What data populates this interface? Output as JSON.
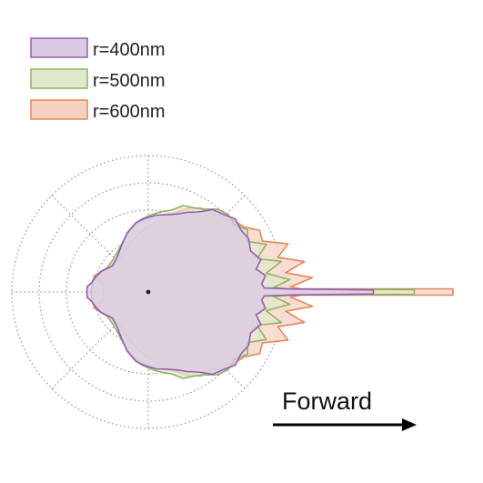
{
  "chart_data": {
    "type": "polar-area",
    "title": "",
    "grid": true,
    "radial_rings": 5,
    "angular_spokes_deg": [
      0,
      45,
      90,
      135,
      180,
      225,
      270,
      315
    ],
    "legend_position": "top-left",
    "angle_convention": "0 deg = forward (right), counter-clockwise, pattern symmetric about forward axis",
    "series": [
      {
        "name": "r=400nm",
        "color": "#9b59b6",
        "fill": "#dac9e3",
        "points": [
          [
            0,
            1.98
          ],
          [
            0.5,
            1.98
          ],
          [
            1.2,
            1.25
          ],
          [
            2,
            1.02
          ],
          [
            4,
            1.0
          ],
          [
            8,
            1.04
          ],
          [
            12,
            0.97
          ],
          [
            16,
            1.03
          ],
          [
            22,
            0.97
          ],
          [
            28,
            1.0
          ],
          [
            34,
            0.98
          ],
          [
            40,
            1.0
          ],
          [
            46,
            0.95
          ],
          [
            52,
            0.92
          ],
          [
            58,
            0.83
          ],
          [
            64,
            0.78
          ],
          [
            70,
            0.73
          ],
          [
            76,
            0.7
          ],
          [
            84,
            0.68
          ],
          [
            92,
            0.65
          ],
          [
            100,
            0.62
          ],
          [
            110,
            0.55
          ],
          [
            120,
            0.47
          ],
          [
            132,
            0.41
          ],
          [
            144,
            0.39
          ],
          [
            156,
            0.45
          ],
          [
            164,
            0.48
          ],
          [
            170,
            0.5
          ],
          [
            175,
            0.54
          ],
          [
            180,
            0.54
          ]
        ]
      },
      {
        "name": "r=500nm",
        "color": "#8db561",
        "fill": "#dfe9cc",
        "points": [
          [
            0,
            2.34
          ],
          [
            0.5,
            2.34
          ],
          [
            1.2,
            1.25
          ],
          [
            2,
            1.1
          ],
          [
            5,
            1.25
          ],
          [
            9,
            1.05
          ],
          [
            13,
            1.2
          ],
          [
            17,
            1.0
          ],
          [
            22,
            1.12
          ],
          [
            27,
            0.98
          ],
          [
            32,
            1.03
          ],
          [
            38,
            0.96
          ],
          [
            44,
            0.98
          ],
          [
            50,
            0.95
          ],
          [
            56,
            0.88
          ],
          [
            62,
            0.84
          ],
          [
            68,
            0.82
          ],
          [
            74,
            0.75
          ],
          [
            80,
            0.72
          ],
          [
            88,
            0.68
          ],
          [
            96,
            0.64
          ],
          [
            106,
            0.57
          ],
          [
            116,
            0.5
          ],
          [
            126,
            0.45
          ],
          [
            138,
            0.42
          ],
          [
            150,
            0.42
          ],
          [
            160,
            0.47
          ],
          [
            168,
            0.5
          ],
          [
            174,
            0.5
          ],
          [
            180,
            0.5
          ]
        ]
      },
      {
        "name": "r=600nm",
        "color": "#e8845e",
        "fill": "#f5d1c1",
        "points": [
          [
            0,
            2.68
          ],
          [
            0.6,
            2.68
          ],
          [
            1.2,
            1.35
          ],
          [
            2,
            1.25
          ],
          [
            5,
            1.45
          ],
          [
            8,
            1.22
          ],
          [
            11,
            1.4
          ],
          [
            15,
            1.18
          ],
          [
            19,
            1.3
          ],
          [
            24,
            1.1
          ],
          [
            29,
            1.12
          ],
          [
            34,
            1.02
          ],
          [
            40,
            0.98
          ],
          [
            46,
            0.93
          ],
          [
            52,
            0.88
          ],
          [
            58,
            0.87
          ],
          [
            64,
            0.82
          ],
          [
            70,
            0.75
          ],
          [
            76,
            0.7
          ],
          [
            84,
            0.62
          ],
          [
            92,
            0.56
          ],
          [
            100,
            0.52
          ],
          [
            110,
            0.46
          ],
          [
            120,
            0.42
          ],
          [
            132,
            0.38
          ],
          [
            144,
            0.4
          ],
          [
            156,
            0.45
          ],
          [
            164,
            0.5
          ],
          [
            170,
            0.4
          ],
          [
            176,
            0.4
          ],
          [
            180,
            0.4
          ]
        ]
      }
    ]
  },
  "legend": [
    {
      "label": "r=400nm",
      "stroke": "#9b59b6",
      "fill": "#dac9e3"
    },
    {
      "label": "r=500nm",
      "stroke": "#8db561",
      "fill": "#dfe9cc"
    },
    {
      "label": "r=600nm",
      "stroke": "#e8845e",
      "fill": "#f5d1c1"
    }
  ],
  "arrow": {
    "label": "Forward"
  }
}
